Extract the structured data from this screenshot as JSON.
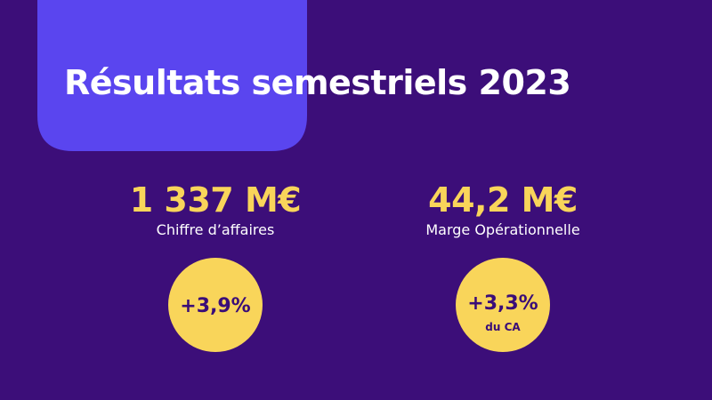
{
  "title": "Résultats semestriels 2023",
  "kpis": [
    {
      "value": "1 337 M€",
      "label": "Chiffre d’affaires",
      "badge": "+3,9%"
    },
    {
      "value": "44,2 M€",
      "label": "Marge Opérationnelle",
      "badge": "+3,3%",
      "badge_note": "du CA"
    }
  ]
}
